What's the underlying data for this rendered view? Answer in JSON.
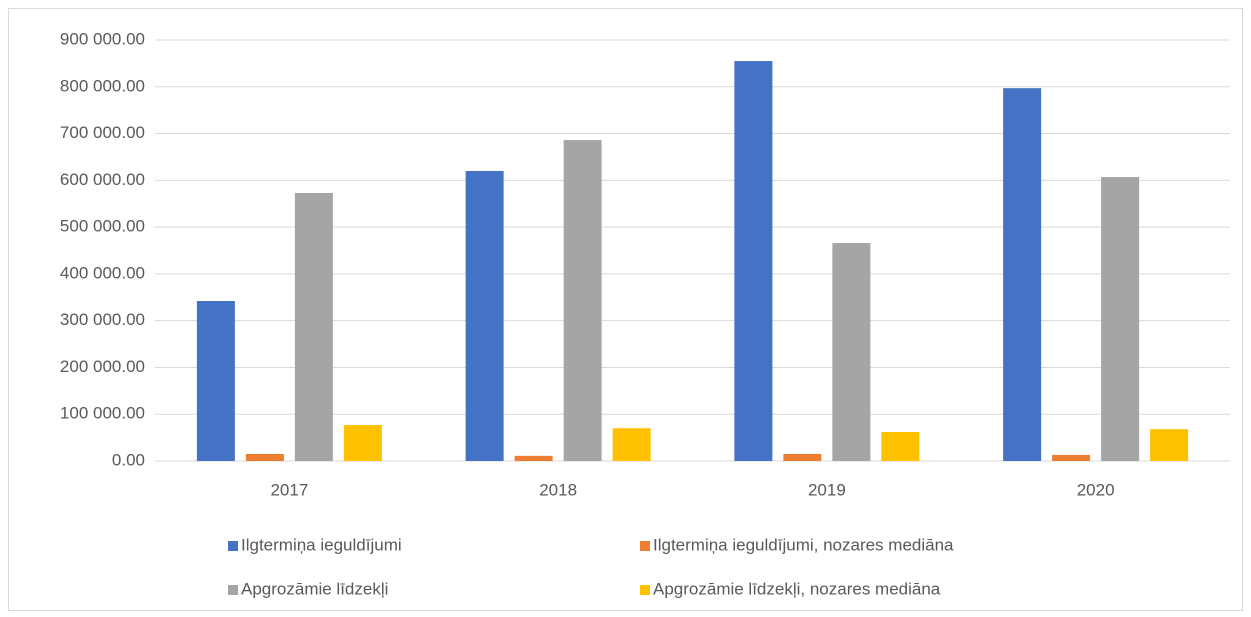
{
  "chart_data": {
    "type": "bar",
    "categories": [
      "2017",
      "2018",
      "2019",
      "2020"
    ],
    "series": [
      {
        "name": "Ilgtermiņa ieguldījumi",
        "color": "#4472c4",
        "values": [
          342000,
          620000,
          855000,
          797000
        ]
      },
      {
        "name": "Ilgtermiņa ieguldījumi, nozares mediāna",
        "color": "#ed7d31",
        "values": [
          15000,
          11000,
          15000,
          13000
        ]
      },
      {
        "name": "Apgrozāmie līdzekļi",
        "color": "#a5a5a5",
        "values": [
          573000,
          686000,
          466000,
          607000
        ]
      },
      {
        "name": "Apgrozāmie līdzekļi, nozares mediāna",
        "color": "#ffc000",
        "values": [
          77000,
          70000,
          62000,
          68000
        ]
      }
    ],
    "ylim": [
      0,
      900000
    ],
    "yticks": [
      {
        "value": 0,
        "label": "0.00"
      },
      {
        "value": 100000,
        "label": "100 000.00"
      },
      {
        "value": 200000,
        "label": "200 000.00"
      },
      {
        "value": 300000,
        "label": "300 000.00"
      },
      {
        "value": 400000,
        "label": "400 000.00"
      },
      {
        "value": 500000,
        "label": "500 000.00"
      },
      {
        "value": 600000,
        "label": "600 000.00"
      },
      {
        "value": 700000,
        "label": "700 000.00"
      },
      {
        "value": 800000,
        "label": "800 000.00"
      },
      {
        "value": 900000,
        "label": "900 000.00"
      }
    ],
    "grid": true,
    "legend": "bottom"
  }
}
